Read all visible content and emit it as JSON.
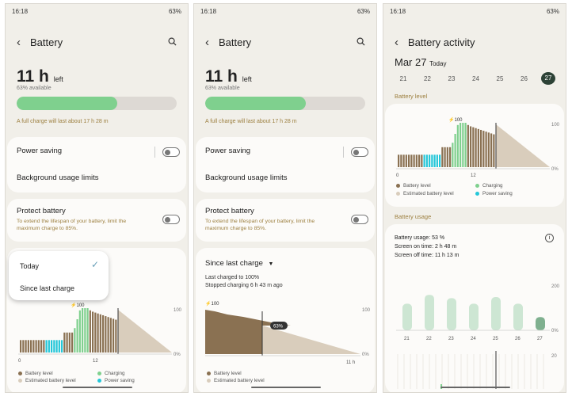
{
  "colors": {
    "accent_green": "#7fd08e",
    "power_saving": "#25c7d9",
    "battery_bar": "#8a7152",
    "estimated": "#d9cdbc",
    "note_text": "#9c7f3f"
  },
  "status": {
    "time": "16:18",
    "battery_pct": "63%"
  },
  "screen1": {
    "title": "Battery",
    "time_left": "11 h",
    "time_left_suffix": "left",
    "available": "63% available",
    "charge_level": 0.63,
    "full_charge_note": "A full charge will last about 17 h 28 m",
    "power_saving": "Power saving",
    "bg_limits": "Background usage limits",
    "protect_title": "Protect battery",
    "protect_desc": "To extend the lifespan of your battery, limit the maximum charge to 85%.",
    "menu": {
      "today": "Today",
      "since": "Since last charge"
    },
    "peak_label": "100",
    "y_top": "100",
    "y_bottom": "0%",
    "x_ticks": [
      "0",
      "12"
    ],
    "legend": {
      "level": "Battery level",
      "estimated": "Estimated battery level",
      "charging": "Charging",
      "power_saving": "Power saving"
    }
  },
  "screen2": {
    "title": "Battery",
    "time_left": "11 h",
    "time_left_suffix": "left",
    "available": "63% available",
    "charge_level": 0.63,
    "full_charge_note": "A full charge will last about 17 h 28 m",
    "power_saving": "Power saving",
    "bg_limits": "Background usage limits",
    "protect_title": "Protect battery",
    "protect_desc": "To extend the lifespan of your battery, limit the maximum charge to 85%.",
    "since": "Since last charge",
    "last_charged": "Last charged to 100%",
    "stopped": "Stopped charging 6 h 43 m ago",
    "peak_label": "100",
    "current_label": "63%",
    "y_top": "100",
    "y_bottom": "0%",
    "x_end": "11 h",
    "legend": {
      "level": "Battery level",
      "estimated": "Estimated battery level"
    }
  },
  "screen3": {
    "title": "Battery activity",
    "date_main": "Mar 27",
    "date_sub": "Today",
    "dates": [
      "21",
      "22",
      "23",
      "24",
      "25",
      "26",
      "27"
    ],
    "section_level": "Battery level",
    "peak_label": "100",
    "y_top": "100",
    "y_bottom": "0%",
    "x_ticks": [
      "0",
      "12"
    ],
    "legend": {
      "level": "Battery level",
      "estimated": "Estimated battery level",
      "charging": "Charging",
      "power_saving": "Power saving"
    },
    "section_usage": "Battery usage",
    "usage": "Battery usage: 53 %",
    "screen_on": "Screen on time: 2 h 48 m",
    "screen_off": "Screen off time: 11 h 13 m",
    "usage_y_top": "200",
    "usage_y_bottom": "0%",
    "y_label3": "20"
  },
  "chart_data": [
    {
      "type": "bar",
      "title": "",
      "ylim": [
        0,
        100
      ],
      "y_ticks": [
        "100",
        "0%"
      ],
      "x_ticks": [
        "0",
        "12"
      ],
      "series": [
        {
          "name": "Battery level"
        },
        {
          "name": "Estimated battery level"
        },
        {
          "name": "Charging"
        },
        {
          "name": "Power saving"
        }
      ]
    },
    {
      "type": "area",
      "title": "",
      "ylim": [
        0,
        100
      ],
      "y_ticks": [
        "100",
        "0%"
      ],
      "x": [
        "",
        "11 h"
      ],
      "series": [
        {
          "name": "Battery level",
          "values": [
            100,
            63
          ]
        },
        {
          "name": "Estimated battery level",
          "values": [
            63,
            0
          ]
        }
      ]
    },
    {
      "type": "bar",
      "title": "",
      "categories": [
        "21",
        "22",
        "23",
        "24",
        "25",
        "26",
        "27"
      ],
      "values": [
        120,
        160,
        145,
        120,
        150,
        120,
        60
      ],
      "ylim": [
        0,
        200
      ],
      "y_ticks": [
        "200",
        "0%"
      ]
    }
  ]
}
